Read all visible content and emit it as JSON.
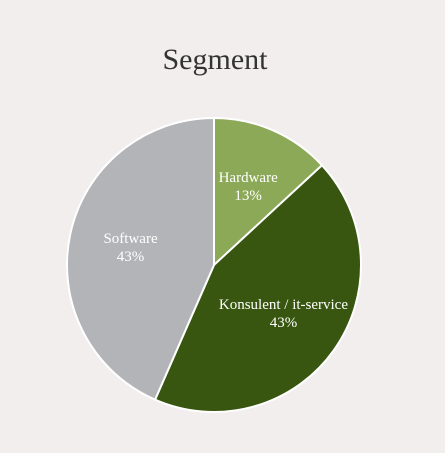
{
  "chart_data": {
    "type": "pie",
    "title": "Segment",
    "categories": [
      "Hardware",
      "Konsulent / it-service",
      "Software"
    ],
    "values": [
      13,
      43,
      43
    ],
    "value_labels": [
      "13%",
      "43%",
      "43%"
    ],
    "colors": [
      "#8ba956",
      "#38560f",
      "#b3b4b8"
    ]
  }
}
